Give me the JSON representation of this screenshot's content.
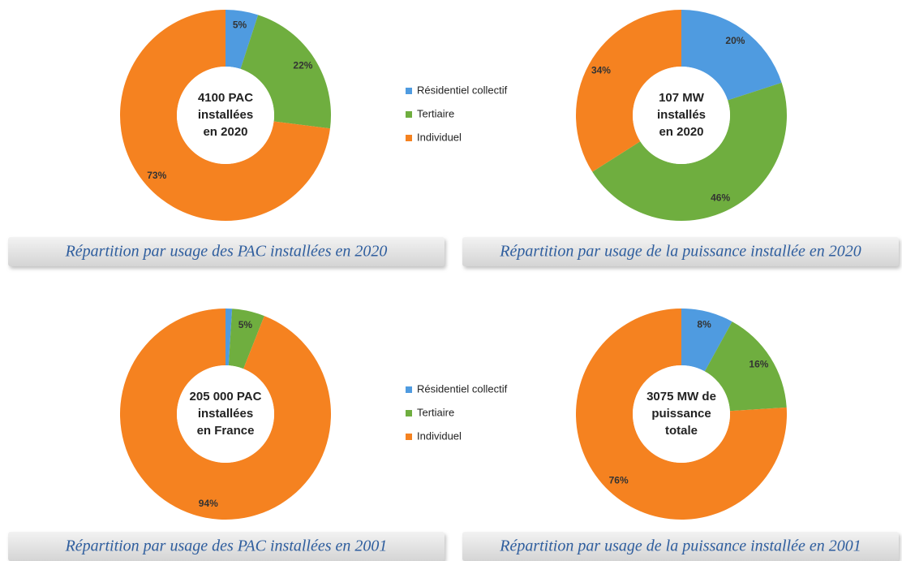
{
  "chart_data": [
    {
      "type": "pie",
      "center_text": [
        "4100 PAC",
        "installées",
        "en 2020"
      ],
      "categories": [
        "Résidentiel collectif",
        "Tertiaire",
        "Individuel"
      ],
      "values": [
        5,
        22,
        73
      ],
      "value_labels": [
        "5%",
        "22%",
        "73%"
      ],
      "colors": [
        "#4f9be0",
        "#6fae3f",
        "#f58220"
      ],
      "caption": "Répartition par usage des PAC installées en 2020"
    },
    {
      "type": "pie",
      "center_text": [
        "107 MW",
        "installés",
        "en 2020"
      ],
      "values": [
        20,
        46,
        34
      ],
      "value_labels": [
        "20%",
        "46%",
        "34%"
      ],
      "colors": [
        "#4f9be0",
        "#6fae3f",
        "#f58220"
      ],
      "caption": "Répartition par usage de la puissance installée en 2020"
    },
    {
      "type": "pie",
      "center_text": [
        "205 000 PAC",
        "installées",
        "en France"
      ],
      "categories": [
        "Résidentiel collectif",
        "Tertiaire",
        "Individuel"
      ],
      "values": [
        1,
        5,
        94
      ],
      "value_labels": [
        "1%",
        "5%",
        "94%"
      ],
      "colors": [
        "#4f9be0",
        "#6fae3f",
        "#f58220"
      ],
      "caption": "Répartition par usage des PAC installées en 2001"
    },
    {
      "type": "pie",
      "center_text": [
        "3075 MW de",
        "puissance",
        "totale"
      ],
      "values": [
        8,
        16,
        76
      ],
      "value_labels": [
        "8%",
        "16%",
        "76%"
      ],
      "colors": [
        "#4f9be0",
        "#6fae3f",
        "#f58220"
      ],
      "caption": "Répartition par usage de la puissance installée en 2001"
    }
  ]
}
